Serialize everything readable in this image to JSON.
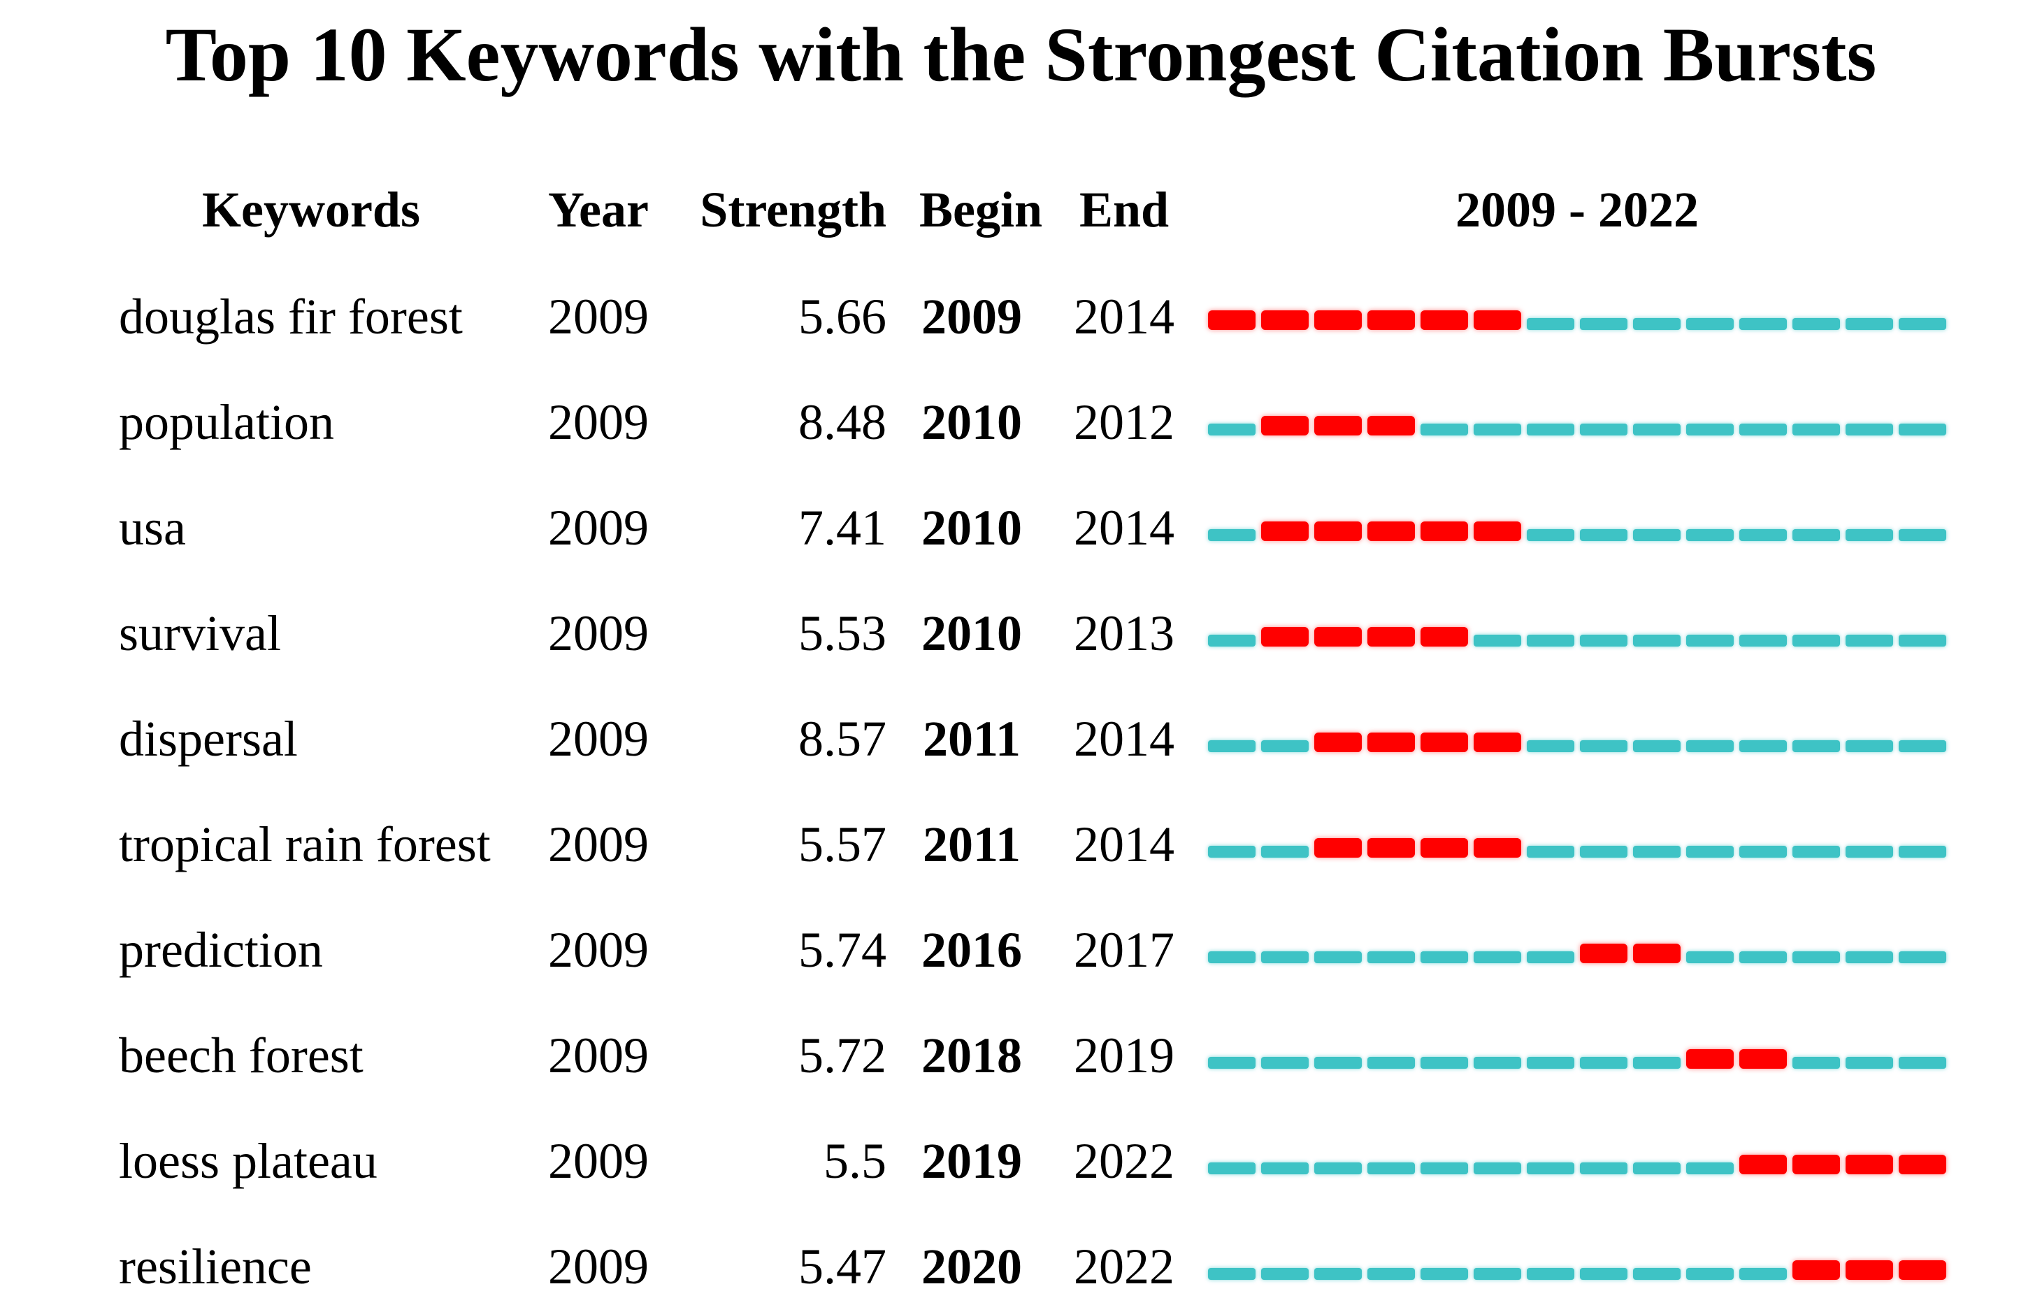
{
  "page": {
    "background": "#FFFFFF"
  },
  "title": "Top 10 Keywords with the Strongest Citation Bursts",
  "header": {
    "keywords": "Keywords",
    "year": "Year",
    "strength": "Strength",
    "begin": "Begin",
    "end": "End",
    "timeline": "2009 - 2022"
  },
  "colors": {
    "burst": "#FF0000",
    "baseline": "#3EC3C5"
  },
  "chart_data": {
    "type": "table",
    "title": "Top 10 Keywords with the Strongest Citation Bursts",
    "columns": [
      "Keywords",
      "Year",
      "Strength",
      "Begin",
      "End"
    ],
    "timeline": {
      "label": "2009 - 2022",
      "start": 2009,
      "end": 2022,
      "burst_color": "#FF0000",
      "base_color": "#3EC3C5"
    },
    "rows": [
      {
        "keyword": "douglas fir forest",
        "year": "2009",
        "strength": "5.66",
        "begin": "2009",
        "end": "2014"
      },
      {
        "keyword": "population",
        "year": "2009",
        "strength": "8.48",
        "begin": "2010",
        "end": "2012"
      },
      {
        "keyword": "usa",
        "year": "2009",
        "strength": "7.41",
        "begin": "2010",
        "end": "2014"
      },
      {
        "keyword": "survival",
        "year": "2009",
        "strength": "5.53",
        "begin": "2010",
        "end": "2013"
      },
      {
        "keyword": "dispersal",
        "year": "2009",
        "strength": "8.57",
        "begin": "2011",
        "end": "2014"
      },
      {
        "keyword": "tropical rain forest",
        "year": "2009",
        "strength": "5.57",
        "begin": "2011",
        "end": "2014"
      },
      {
        "keyword": "prediction",
        "year": "2009",
        "strength": "5.74",
        "begin": "2016",
        "end": "2017"
      },
      {
        "keyword": "beech forest",
        "year": "2009",
        "strength": "5.72",
        "begin": "2018",
        "end": "2019"
      },
      {
        "keyword": "loess plateau",
        "year": "2009",
        "strength": "5.5",
        "begin": "2019",
        "end": "2022"
      },
      {
        "keyword": "resilience",
        "year": "2009",
        "strength": "5.47",
        "begin": "2020",
        "end": "2022"
      }
    ]
  }
}
